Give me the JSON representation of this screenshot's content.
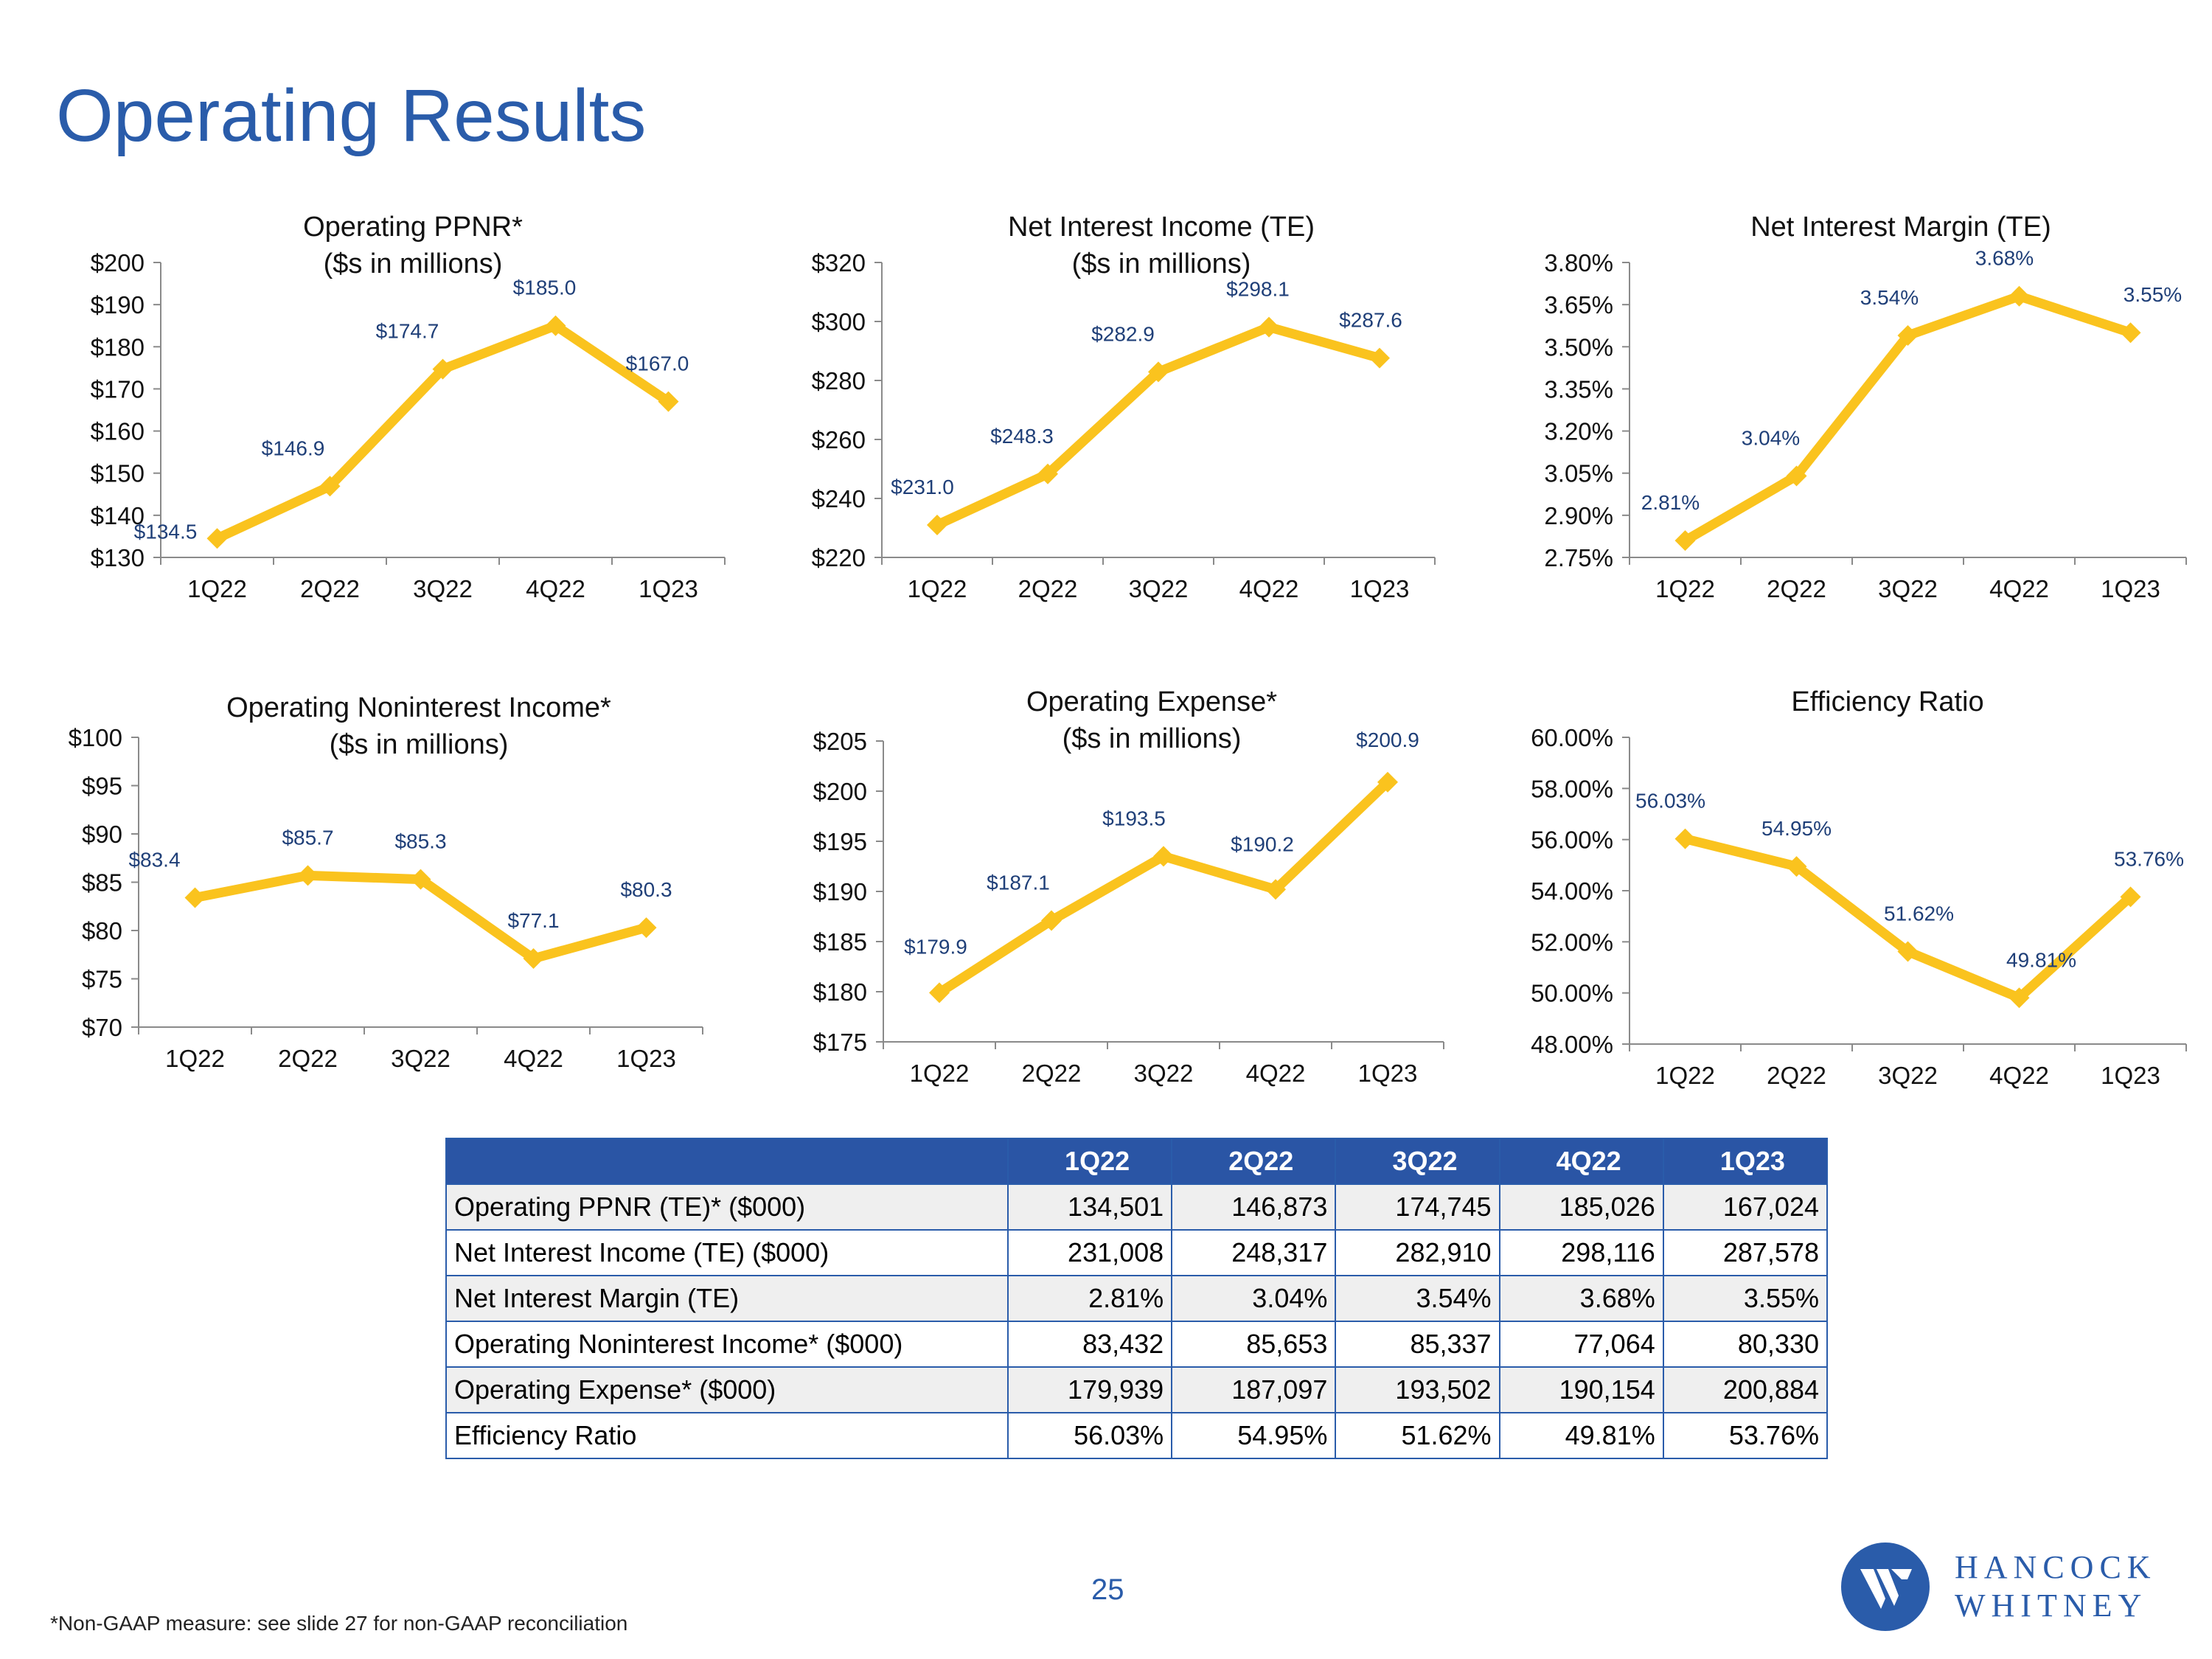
{
  "page": {
    "title": "Operating Results",
    "page_number": "25",
    "footnote": "*Non-GAAP measure: see slide 27 for non-GAAP reconciliation",
    "logo": {
      "line1": "HANCOCK",
      "line2": "WHITNEY"
    }
  },
  "colors": {
    "title": "#2a5caa",
    "line": "#fac31e",
    "label": "#1f3f78",
    "table_header": "#2a55a5"
  },
  "chart_data": [
    {
      "type": "line",
      "title": "Operating PPNR*",
      "subtitle": "($s in millions)",
      "categories": [
        "1Q22",
        "2Q22",
        "3Q22",
        "4Q22",
        "1Q23"
      ],
      "values": [
        134.5,
        146.9,
        174.7,
        185.0,
        167.0
      ],
      "data_labels": [
        "$134.5",
        "$146.9",
        "$174.7",
        "$185.0",
        "$167.0"
      ],
      "ylim": [
        130,
        200
      ],
      "yticks": [
        130,
        140,
        150,
        160,
        170,
        180,
        190,
        200
      ],
      "ytick_labels": [
        "$130",
        "$140",
        "$150",
        "$160",
        "$170",
        "$180",
        "$190",
        "$200"
      ]
    },
    {
      "type": "line",
      "title": "Net Interest Income (TE)",
      "subtitle": "($s in millions)",
      "categories": [
        "1Q22",
        "2Q22",
        "3Q22",
        "4Q22",
        "1Q23"
      ],
      "values": [
        231.0,
        248.3,
        282.9,
        298.1,
        287.6
      ],
      "data_labels": [
        "$231.0",
        "$248.3",
        "$282.9",
        "$298.1",
        "$287.6"
      ],
      "ylim": [
        220,
        320
      ],
      "yticks": [
        220,
        240,
        260,
        280,
        300,
        320
      ],
      "ytick_labels": [
        "$220",
        "$240",
        "$260",
        "$280",
        "$300",
        "$320"
      ]
    },
    {
      "type": "line",
      "title": "Net Interest Margin (TE)",
      "subtitle": "",
      "categories": [
        "1Q22",
        "2Q22",
        "3Q22",
        "4Q22",
        "1Q23"
      ],
      "values": [
        2.81,
        3.04,
        3.54,
        3.68,
        3.55
      ],
      "data_labels": [
        "2.81%",
        "3.04%",
        "3.54%",
        "3.68%",
        "3.55%"
      ],
      "ylim": [
        2.75,
        3.8
      ],
      "yticks": [
        2.75,
        2.9,
        3.05,
        3.2,
        3.35,
        3.5,
        3.65,
        3.8
      ],
      "ytick_labels": [
        "2.75%",
        "2.90%",
        "3.05%",
        "3.20%",
        "3.35%",
        "3.50%",
        "3.65%",
        "3.80%"
      ]
    },
    {
      "type": "line",
      "title": "Operating Noninterest Income*",
      "subtitle": "($s in millions)",
      "categories": [
        "1Q22",
        "2Q22",
        "3Q22",
        "4Q22",
        "1Q23"
      ],
      "values": [
        83.4,
        85.7,
        85.3,
        77.1,
        80.3
      ],
      "data_labels": [
        "$83.4",
        "$85.7",
        "$85.3",
        "$77.1",
        "$80.3"
      ],
      "ylim": [
        70,
        100
      ],
      "yticks": [
        70,
        75,
        80,
        85,
        90,
        95,
        100
      ],
      "ytick_labels": [
        "$70",
        "$75",
        "$80",
        "$85",
        "$90",
        "$95",
        "$100"
      ]
    },
    {
      "type": "line",
      "title": "Operating Expense*",
      "subtitle": "($s in millions)",
      "categories": [
        "1Q22",
        "2Q22",
        "3Q22",
        "4Q22",
        "1Q23"
      ],
      "values": [
        179.9,
        187.1,
        193.5,
        190.2,
        200.9
      ],
      "data_labels": [
        "$179.9",
        "$187.1",
        "$193.5",
        "$190.2",
        "$200.9"
      ],
      "ylim": [
        175,
        205
      ],
      "yticks": [
        175,
        180,
        185,
        190,
        195,
        200,
        205
      ],
      "ytick_labels": [
        "$175",
        "$180",
        "$185",
        "$190",
        "$195",
        "$200",
        "$205"
      ]
    },
    {
      "type": "line",
      "title": "Efficiency Ratio",
      "subtitle": "",
      "categories": [
        "1Q22",
        "2Q22",
        "3Q22",
        "4Q22",
        "1Q23"
      ],
      "values": [
        56.03,
        54.95,
        51.62,
        49.81,
        53.76
      ],
      "data_labels": [
        "56.03%",
        "54.95%",
        "51.62%",
        "49.81%",
        "53.76%"
      ],
      "ylim": [
        48,
        60
      ],
      "yticks": [
        48,
        50,
        52,
        54,
        56,
        58,
        60
      ],
      "ytick_labels": [
        "48.00%",
        "50.00%",
        "52.00%",
        "54.00%",
        "56.00%",
        "58.00%",
        "60.00%"
      ]
    }
  ],
  "table": {
    "headers": [
      "",
      "1Q22",
      "2Q22",
      "3Q22",
      "4Q22",
      "1Q23"
    ],
    "rows": [
      {
        "label": "Operating PPNR (TE)* ($000)",
        "values": [
          "134,501",
          "146,873",
          "174,745",
          "185,026",
          "167,024"
        ]
      },
      {
        "label": "Net Interest Income (TE) ($000)",
        "values": [
          "231,008",
          "248,317",
          "282,910",
          "298,116",
          "287,578"
        ]
      },
      {
        "label": "Net Interest Margin (TE)",
        "values": [
          "2.81%",
          "3.04%",
          "3.54%",
          "3.68%",
          "3.55%"
        ]
      },
      {
        "label": "Operating Noninterest Income* ($000)",
        "values": [
          "83,432",
          "85,653",
          "85,337",
          "77,064",
          "80,330"
        ]
      },
      {
        "label": "Operating Expense* ($000)",
        "values": [
          "179,939",
          "187,097",
          "193,502",
          "190,154",
          "200,884"
        ]
      },
      {
        "label": "Efficiency Ratio",
        "values": [
          "56.03%",
          "54.95%",
          "51.62%",
          "49.81%",
          "53.76%"
        ]
      }
    ]
  }
}
